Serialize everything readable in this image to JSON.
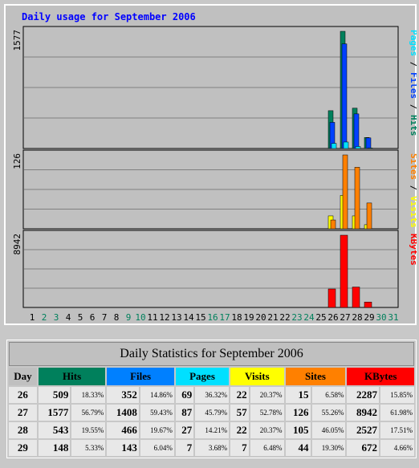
{
  "chart_title": "Daily usage for September 2006",
  "colors": {
    "hits": "#00805c",
    "files": "#0040ff",
    "pages": "#00e0ff",
    "visits": "#ffff00",
    "sites": "#ff8000",
    "kbytes": "#ff0000"
  },
  "chart_data": {
    "type": "bar",
    "categories": [
      "1",
      "2",
      "3",
      "4",
      "5",
      "6",
      "7",
      "8",
      "9",
      "10",
      "11",
      "12",
      "13",
      "14",
      "15",
      "16",
      "17",
      "18",
      "19",
      "20",
      "21",
      "22",
      "23",
      "24",
      "25",
      "26",
      "27",
      "28",
      "29",
      "30",
      "31"
    ],
    "weekend_days": [
      "2",
      "3",
      "9",
      "10",
      "16",
      "17",
      "23",
      "24",
      "30",
      "31"
    ],
    "panels": [
      {
        "id": "pfh",
        "max_label": "1577",
        "side_label": [
          "Pages",
          "Files",
          "Hits"
        ],
        "side_colors": [
          "#00e0ff",
          "#0040ff",
          "#00805c"
        ],
        "max": 1577,
        "series": [
          {
            "name": "Hits",
            "color": "#00805c",
            "values": {
              "26": 509,
              "27": 1577,
              "28": 543,
              "29": 148
            }
          },
          {
            "name": "Files",
            "color": "#0040ff",
            "values": {
              "26": 352,
              "27": 1408,
              "28": 466,
              "29": 143
            }
          },
          {
            "name": "Pages",
            "color": "#00e0ff",
            "values": {
              "26": 69,
              "27": 87,
              "28": 27,
              "29": 7
            }
          }
        ]
      },
      {
        "id": "sv",
        "max_label": "126",
        "side_label": [
          "Sites",
          "Visits"
        ],
        "side_colors": [
          "#ff8000",
          "#ffff00"
        ],
        "max": 126,
        "series": [
          {
            "name": "Visits",
            "color": "#ffff00",
            "values": {
              "26": 22,
              "27": 57,
              "28": 22,
              "29": 7
            }
          },
          {
            "name": "Sites",
            "color": "#ff8000",
            "values": {
              "26": 15,
              "27": 126,
              "28": 105,
              "29": 44
            }
          }
        ]
      },
      {
        "id": "kb",
        "max_label": "8942",
        "side_label": [
          "KBytes"
        ],
        "side_colors": [
          "#ff0000"
        ],
        "max": 8942,
        "series": [
          {
            "name": "KBytes",
            "color": "#ff0000",
            "values": {
              "26": 2287,
              "27": 8942,
              "28": 2527,
              "29": 672
            }
          }
        ]
      }
    ]
  },
  "table": {
    "caption": "Daily Statistics for September 2006",
    "headers": [
      {
        "label": "Day",
        "bg": "#c0c0c0",
        "color": "#000000"
      },
      {
        "label": "Hits",
        "bg": "#00805c",
        "color": "#000000"
      },
      {
        "label": "Files",
        "bg": "#0080ff",
        "color": "#000000"
      },
      {
        "label": "Pages",
        "bg": "#00e0ff",
        "color": "#000000"
      },
      {
        "label": "Visits",
        "bg": "#ffff00",
        "color": "#000000"
      },
      {
        "label": "Sites",
        "bg": "#ff8000",
        "color": "#000000"
      },
      {
        "label": "KBytes",
        "bg": "#ff0000",
        "color": "#000000"
      }
    ],
    "rows": [
      {
        "day": "26",
        "hits": "509",
        "hits_pct": "18.33%",
        "files": "352",
        "files_pct": "14.86%",
        "pages": "69",
        "pages_pct": "36.32%",
        "visits": "22",
        "visits_pct": "20.37%",
        "sites": "15",
        "sites_pct": "6.58%",
        "kbytes": "2287",
        "kbytes_pct": "15.85%"
      },
      {
        "day": "27",
        "hits": "1577",
        "hits_pct": "56.79%",
        "files": "1408",
        "files_pct": "59.43%",
        "pages": "87",
        "pages_pct": "45.79%",
        "visits": "57",
        "visits_pct": "52.78%",
        "sites": "126",
        "sites_pct": "55.26%",
        "kbytes": "8942",
        "kbytes_pct": "61.98%"
      },
      {
        "day": "28",
        "hits": "543",
        "hits_pct": "19.55%",
        "files": "466",
        "files_pct": "19.67%",
        "pages": "27",
        "pages_pct": "14.21%",
        "visits": "22",
        "visits_pct": "20.37%",
        "sites": "105",
        "sites_pct": "46.05%",
        "kbytes": "2527",
        "kbytes_pct": "17.51%"
      },
      {
        "day": "29",
        "hits": "148",
        "hits_pct": "5.33%",
        "files": "143",
        "files_pct": "6.04%",
        "pages": "7",
        "pages_pct": "3.68%",
        "visits": "7",
        "visits_pct": "6.48%",
        "sites": "44",
        "sites_pct": "19.30%",
        "kbytes": "672",
        "kbytes_pct": "4.66%"
      }
    ]
  }
}
